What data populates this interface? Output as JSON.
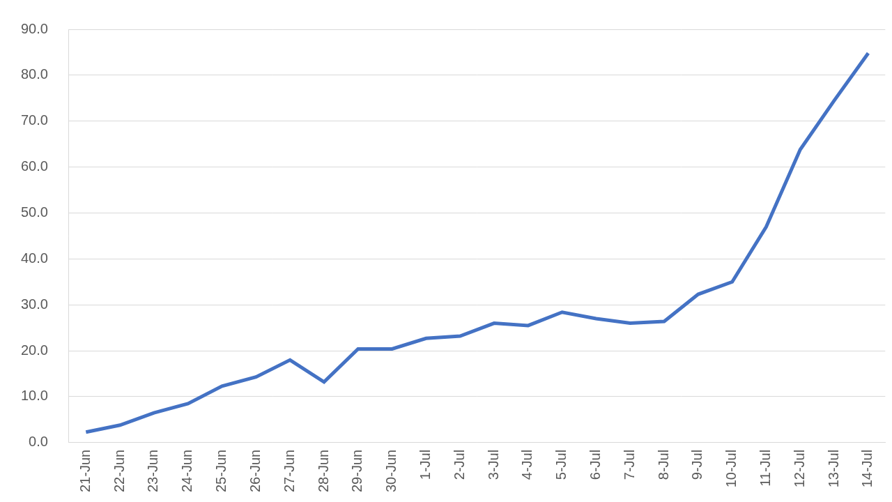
{
  "chart_data": {
    "type": "line",
    "categories": [
      "21-Jun",
      "22-Jun",
      "23-Jun",
      "24-Jun",
      "25-Jun",
      "26-Jun",
      "27-Jun",
      "28-Jun",
      "29-Jun",
      "30-Jun",
      "1-Jul",
      "2-Jul",
      "3-Jul",
      "4-Jul",
      "5-Jul",
      "6-Jul",
      "7-Jul",
      "8-Jul",
      "9-Jul",
      "10-Jul",
      "11-Jul",
      "12-Jul",
      "13-Jul",
      "14-Jul"
    ],
    "values": [
      2.3,
      3.8,
      6.5,
      8.5,
      12.3,
      14.3,
      18.0,
      13.2,
      20.4,
      20.4,
      22.7,
      23.2,
      26.0,
      25.5,
      28.4,
      27.0,
      26.0,
      26.4,
      32.3,
      35.0,
      47.0,
      63.8,
      74.5,
      84.8
    ],
    "color": "#4472c4",
    "marker": "none",
    "ylim": [
      0,
      90
    ],
    "yticks": [
      {
        "value": 0,
        "label": "0.0"
      },
      {
        "value": 10,
        "label": "10.0"
      },
      {
        "value": 20,
        "label": "20.0"
      },
      {
        "value": 30,
        "label": "30.0"
      },
      {
        "value": 40,
        "label": "40.0"
      },
      {
        "value": 50,
        "label": "50.0"
      },
      {
        "value": 60,
        "label": "60.0"
      },
      {
        "value": 70,
        "label": "70.0"
      },
      {
        "value": 80,
        "label": "80.0"
      },
      {
        "value": 90,
        "label": "90.0"
      }
    ],
    "grid": true
  }
}
